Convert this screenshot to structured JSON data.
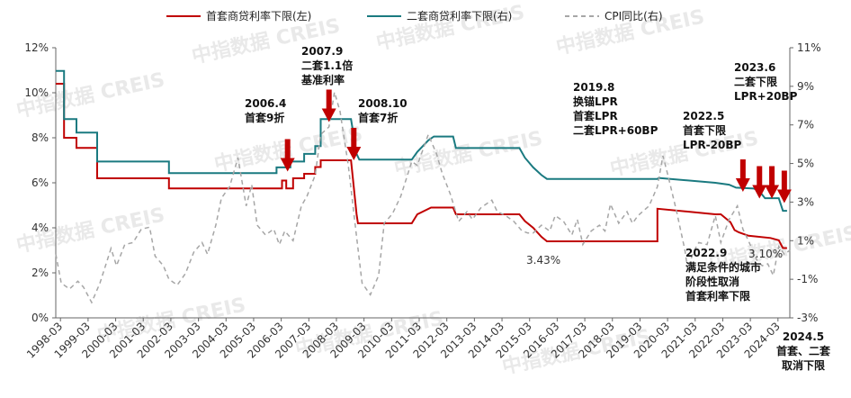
{
  "chart_data": {
    "type": "line",
    "legend": [
      {
        "name": "首套商贷利率下限(左)",
        "color": "#c00000",
        "style": "solid"
      },
      {
        "name": "二套商贷利率下限(右)",
        "color": "#1a7a80",
        "style": "solid"
      },
      {
        "name": "CPI同比(右)",
        "color": "#a6a6a6",
        "style": "dashed"
      }
    ],
    "left_axis": {
      "ylim": [
        0,
        12
      ],
      "ticks": [
        "0%",
        "2%",
        "4%",
        "6%",
        "8%",
        "10%",
        "12%"
      ]
    },
    "right_axis": {
      "ylim": [
        -3,
        11
      ],
      "ticks": [
        "-3%",
        "-1%",
        "1%",
        "3%",
        "5%",
        "7%",
        "9%",
        "11%"
      ]
    },
    "x_categories": [
      "1998-03",
      "1999-03",
      "2000-03",
      "2001-03",
      "2002-03",
      "2003-03",
      "2004-03",
      "2005-03",
      "2006-03",
      "2007-03",
      "2008-03",
      "2009-03",
      "2010-03",
      "2011-03",
      "2012-03",
      "2013-03",
      "2014-03",
      "2015-03",
      "2016-03",
      "2017-03",
      "2018-03",
      "2019-03",
      "2020-03",
      "2021-03",
      "2022-03",
      "2023-03",
      "2024-03"
    ],
    "x_domain": [
      1998.0,
      2024.6
    ],
    "series": [
      {
        "name": "首套商贷利率下限(左)",
        "axis": "left",
        "color": "#c00000",
        "points": [
          [
            1998.0,
            10.4
          ],
          [
            1998.3,
            10.4
          ],
          [
            1998.3,
            8.0
          ],
          [
            1998.75,
            8.0
          ],
          [
            1998.75,
            7.55
          ],
          [
            1999.5,
            7.55
          ],
          [
            1999.5,
            6.2
          ],
          [
            2002.1,
            6.2
          ],
          [
            2002.1,
            5.75
          ],
          [
            2006.2,
            5.75
          ],
          [
            2006.2,
            6.1
          ],
          [
            2006.35,
            6.1
          ],
          [
            2006.35,
            5.75
          ],
          [
            2006.6,
            5.75
          ],
          [
            2006.6,
            6.2
          ],
          [
            2007.0,
            6.2
          ],
          [
            2007.0,
            6.4
          ],
          [
            2007.4,
            6.4
          ],
          [
            2007.4,
            6.7
          ],
          [
            2007.6,
            6.7
          ],
          [
            2007.6,
            7.0
          ],
          [
            2008.7,
            7.0
          ],
          [
            2008.9,
            4.6
          ],
          [
            2008.95,
            4.2
          ],
          [
            2010.9,
            4.2
          ],
          [
            2011.1,
            4.6
          ],
          [
            2011.6,
            4.9
          ],
          [
            2012.4,
            4.9
          ],
          [
            2012.5,
            4.6
          ],
          [
            2014.8,
            4.6
          ],
          [
            2015.0,
            4.3
          ],
          [
            2015.3,
            4.0
          ],
          [
            2015.6,
            3.6
          ],
          [
            2015.8,
            3.4
          ],
          [
            2019.8,
            3.4
          ],
          [
            2019.8,
            4.85
          ],
          [
            2021.9,
            4.6
          ],
          [
            2022.1,
            4.6
          ],
          [
            2022.3,
            4.4
          ],
          [
            2022.45,
            4.25
          ],
          [
            2022.6,
            3.9
          ],
          [
            2022.75,
            3.8
          ],
          [
            2023.1,
            3.65
          ],
          [
            2023.9,
            3.55
          ],
          [
            2024.2,
            3.45
          ],
          [
            2024.35,
            3.1
          ],
          [
            2024.5,
            3.1
          ]
        ]
      },
      {
        "name": "二套商贷利率下限(右)",
        "axis": "right",
        "color": "#1a7a80",
        "points": [
          [
            1998.0,
            9.8
          ],
          [
            1998.3,
            9.8
          ],
          [
            1998.3,
            7.3
          ],
          [
            1998.75,
            7.3
          ],
          [
            1998.75,
            6.6
          ],
          [
            1999.5,
            6.6
          ],
          [
            1999.5,
            5.1
          ],
          [
            2002.1,
            5.1
          ],
          [
            2002.1,
            4.5
          ],
          [
            2006.0,
            4.5
          ],
          [
            2006.0,
            4.8
          ],
          [
            2006.5,
            4.8
          ],
          [
            2006.5,
            5.1
          ],
          [
            2007.0,
            5.1
          ],
          [
            2007.0,
            5.5
          ],
          [
            2007.4,
            5.5
          ],
          [
            2007.4,
            5.9
          ],
          [
            2007.6,
            5.9
          ],
          [
            2007.6,
            7.3
          ],
          [
            2008.7,
            7.3
          ],
          [
            2008.9,
            5.5
          ],
          [
            2009.0,
            5.2
          ],
          [
            2010.9,
            5.2
          ],
          [
            2011.1,
            5.6
          ],
          [
            2011.5,
            6.2
          ],
          [
            2011.7,
            6.4
          ],
          [
            2012.4,
            6.4
          ],
          [
            2012.5,
            5.8
          ],
          [
            2014.8,
            5.8
          ],
          [
            2015.0,
            5.3
          ],
          [
            2015.3,
            4.8
          ],
          [
            2015.6,
            4.4
          ],
          [
            2015.8,
            4.2
          ],
          [
            2019.8,
            4.2
          ],
          [
            2019.85,
            4.25
          ],
          [
            2021.9,
            4.0
          ],
          [
            2022.4,
            3.9
          ],
          [
            2022.65,
            3.75
          ],
          [
            2023.3,
            3.7
          ],
          [
            2023.5,
            3.55
          ],
          [
            2023.7,
            3.2
          ],
          [
            2024.2,
            3.2
          ],
          [
            2024.35,
            2.55
          ],
          [
            2024.5,
            2.55
          ]
        ]
      },
      {
        "name": "CPI同比(右)",
        "axis": "right",
        "color": "#a6a6a6",
        "dashed": true,
        "points": [
          [
            1998.0,
            0.3
          ],
          [
            1998.2,
            -1.2
          ],
          [
            1998.5,
            -1.5
          ],
          [
            1998.8,
            -1.1
          ],
          [
            1999.0,
            -1.4
          ],
          [
            1999.3,
            -2.2
          ],
          [
            1999.6,
            -1.2
          ],
          [
            2000.0,
            0.6
          ],
          [
            2000.2,
            -0.3
          ],
          [
            2000.5,
            0.8
          ],
          [
            2000.8,
            0.9
          ],
          [
            2001.1,
            1.6
          ],
          [
            2001.4,
            1.7
          ],
          [
            2001.6,
            0.2
          ],
          [
            2001.9,
            -0.3
          ],
          [
            2002.1,
            -1.0
          ],
          [
            2002.4,
            -1.3
          ],
          [
            2002.7,
            -0.7
          ],
          [
            2003.0,
            0.4
          ],
          [
            2003.3,
            0.9
          ],
          [
            2003.5,
            0.3
          ],
          [
            2003.8,
            1.8
          ],
          [
            2004.0,
            3.2
          ],
          [
            2004.3,
            3.8
          ],
          [
            2004.6,
            5.3
          ],
          [
            2004.9,
            2.8
          ],
          [
            2005.1,
            3.9
          ],
          [
            2005.3,
            1.8
          ],
          [
            2005.6,
            1.3
          ],
          [
            2005.9,
            1.6
          ],
          [
            2006.1,
            0.8
          ],
          [
            2006.3,
            1.5
          ],
          [
            2006.6,
            1.0
          ],
          [
            2006.9,
            2.8
          ],
          [
            2007.1,
            3.3
          ],
          [
            2007.4,
            4.4
          ],
          [
            2007.6,
            6.5
          ],
          [
            2007.9,
            6.9
          ],
          [
            2008.1,
            8.7
          ],
          [
            2008.3,
            7.7
          ],
          [
            2008.6,
            4.9
          ],
          [
            2008.9,
            1.2
          ],
          [
            2009.1,
            -1.2
          ],
          [
            2009.4,
            -1.8
          ],
          [
            2009.7,
            -0.8
          ],
          [
            2009.9,
            1.9
          ],
          [
            2010.2,
            2.4
          ],
          [
            2010.5,
            3.3
          ],
          [
            2010.9,
            5.1
          ],
          [
            2011.1,
            4.9
          ],
          [
            2011.5,
            6.5
          ],
          [
            2011.8,
            5.5
          ],
          [
            2012.0,
            4.5
          ],
          [
            2012.3,
            3.4
          ],
          [
            2012.6,
            2.0
          ],
          [
            2012.9,
            2.5
          ],
          [
            2013.1,
            2.1
          ],
          [
            2013.4,
            2.7
          ],
          [
            2013.8,
            3.1
          ],
          [
            2014.0,
            2.5
          ],
          [
            2014.3,
            2.3
          ],
          [
            2014.6,
            2.0
          ],
          [
            2014.9,
            1.5
          ],
          [
            2015.1,
            1.4
          ],
          [
            2015.3,
            1.4
          ],
          [
            2015.6,
            1.8
          ],
          [
            2015.9,
            1.5
          ],
          [
            2016.1,
            2.3
          ],
          [
            2016.4,
            2.0
          ],
          [
            2016.7,
            1.3
          ],
          [
            2016.9,
            2.1
          ],
          [
            2017.1,
            0.8
          ],
          [
            2017.4,
            1.5
          ],
          [
            2017.7,
            1.8
          ],
          [
            2017.9,
            1.5
          ],
          [
            2018.1,
            2.9
          ],
          [
            2018.4,
            1.9
          ],
          [
            2018.7,
            2.5
          ],
          [
            2018.9,
            1.9
          ],
          [
            2019.1,
            2.3
          ],
          [
            2019.5,
            2.8
          ],
          [
            2019.8,
            3.8
          ],
          [
            2020.0,
            5.4
          ],
          [
            2020.2,
            4.3
          ],
          [
            2020.5,
            2.5
          ],
          [
            2020.8,
            0.5
          ],
          [
            2020.9,
            -0.5
          ],
          [
            2021.1,
            0.4
          ],
          [
            2021.3,
            0.9
          ],
          [
            2021.6,
            0.8
          ],
          [
            2021.9,
            2.3
          ],
          [
            2022.1,
            0.9
          ],
          [
            2022.4,
            2.1
          ],
          [
            2022.7,
            2.8
          ],
          [
            2022.9,
            1.6
          ],
          [
            2023.1,
            1.0
          ],
          [
            2023.4,
            0.0
          ],
          [
            2023.6,
            -0.3
          ],
          [
            2023.8,
            -0.2
          ],
          [
            2024.0,
            -0.8
          ],
          [
            2024.2,
            0.7
          ],
          [
            2024.4,
            0.3
          ],
          [
            2024.6,
            0.5
          ]
        ]
      }
    ],
    "arrows": [
      {
        "at": 2006.4,
        "tip_pct": 6.5
      },
      {
        "at": 2007.9,
        "tip_pct": 8.7
      },
      {
        "at": 2008.8,
        "tip_pct": 7.0
      },
      {
        "at": 2022.9,
        "tip_pct": 5.6
      },
      {
        "at": 2023.5,
        "tip_pct": 5.3
      },
      {
        "at": 2023.95,
        "tip_pct": 5.3
      },
      {
        "at": 2024.4,
        "tip_pct": 5.1
      }
    ],
    "annotations": [
      {
        "lines": [
          "2006.4",
          "首套9折"
        ]
      },
      {
        "lines": [
          "2007.9",
          "二套1.1倍",
          "基准利率"
        ]
      },
      {
        "lines": [
          "2008.10",
          "首套7折"
        ]
      },
      {
        "lines": [
          "2019.8",
          "换锚LPR",
          "首套LPR",
          "二套LPR+60BP"
        ]
      },
      {
        "lines": [
          "2022.5",
          "首套下限",
          "LPR-20BP"
        ]
      },
      {
        "lines": [
          "2023.6",
          "二套下限",
          "LPR+20BP"
        ]
      },
      {
        "lines": [
          "2022.9",
          "满足条件的城市",
          "阶段性取消",
          "首套利率下限"
        ]
      },
      {
        "lines": [
          "2024.5",
          "首套、二套",
          "取消下限"
        ]
      }
    ],
    "value_labels": [
      "3.43%",
      "3.10%"
    ],
    "watermark": "中指数据 CREIS",
    "grid": false
  }
}
